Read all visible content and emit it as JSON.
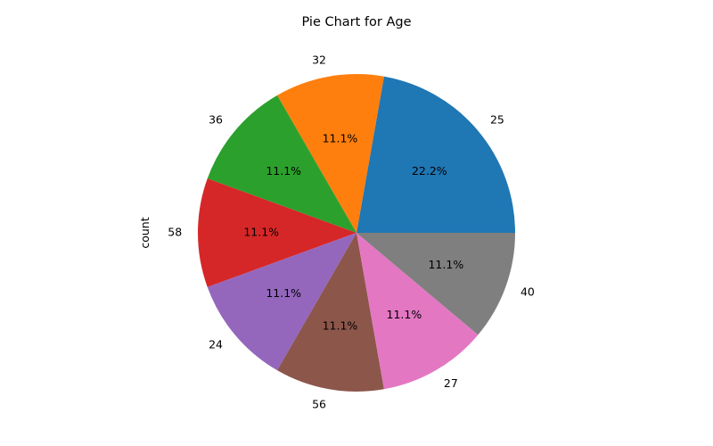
{
  "chart_data": {
    "type": "pie",
    "title": "Pie Chart for Age",
    "ylabel": "count",
    "categories": [
      "25",
      "32",
      "36",
      "58",
      "24",
      "56",
      "27",
      "40"
    ],
    "values": [
      2,
      1,
      1,
      1,
      1,
      1,
      1,
      1
    ],
    "percent_labels": [
      "22.2%",
      "11.1%",
      "11.1%",
      "11.1%",
      "11.1%",
      "11.1%",
      "11.1%",
      "11.1%"
    ],
    "colors": [
      "#1f77b4",
      "#ff7f0e",
      "#2ca02c",
      "#d62728",
      "#9467bd",
      "#8c564b",
      "#e377c2",
      "#7f7f7f"
    ],
    "start_angle_deg": 0,
    "direction": "counterclockwise"
  }
}
